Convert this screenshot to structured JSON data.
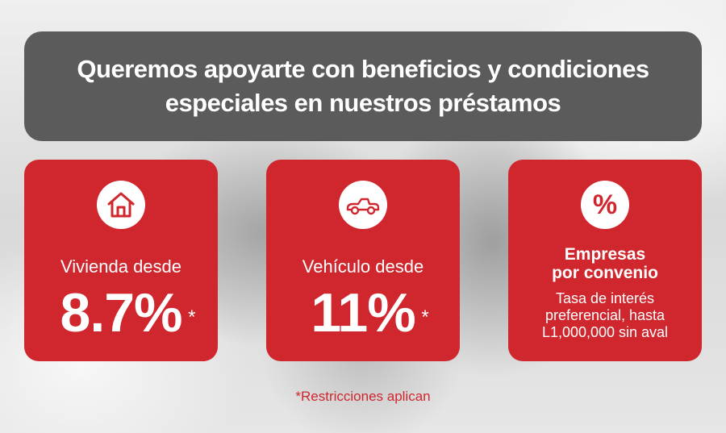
{
  "header": {
    "title": "Queremos apoyarte con beneficios y condiciones\nespeciales en nuestros préstamos"
  },
  "cards": [
    {
      "icon": "house-icon",
      "label": "Vivienda desde",
      "rate": "8.7%",
      "mark": "*"
    },
    {
      "icon": "car-icon",
      "label": "Vehículo desde",
      "rate": "11%",
      "mark": "*"
    },
    {
      "icon": "percent-icon",
      "icon_glyph": "%",
      "title": "Empresas\npor convenio",
      "description": "Tasa de interés\npreferencial, hasta\nL1,000,000 sin aval"
    }
  ],
  "footnote": "*Restricciones aplican",
  "colors": {
    "accent": "#d0262d",
    "header_bg": "#5b5b5b",
    "text_light": "#ffffff"
  }
}
